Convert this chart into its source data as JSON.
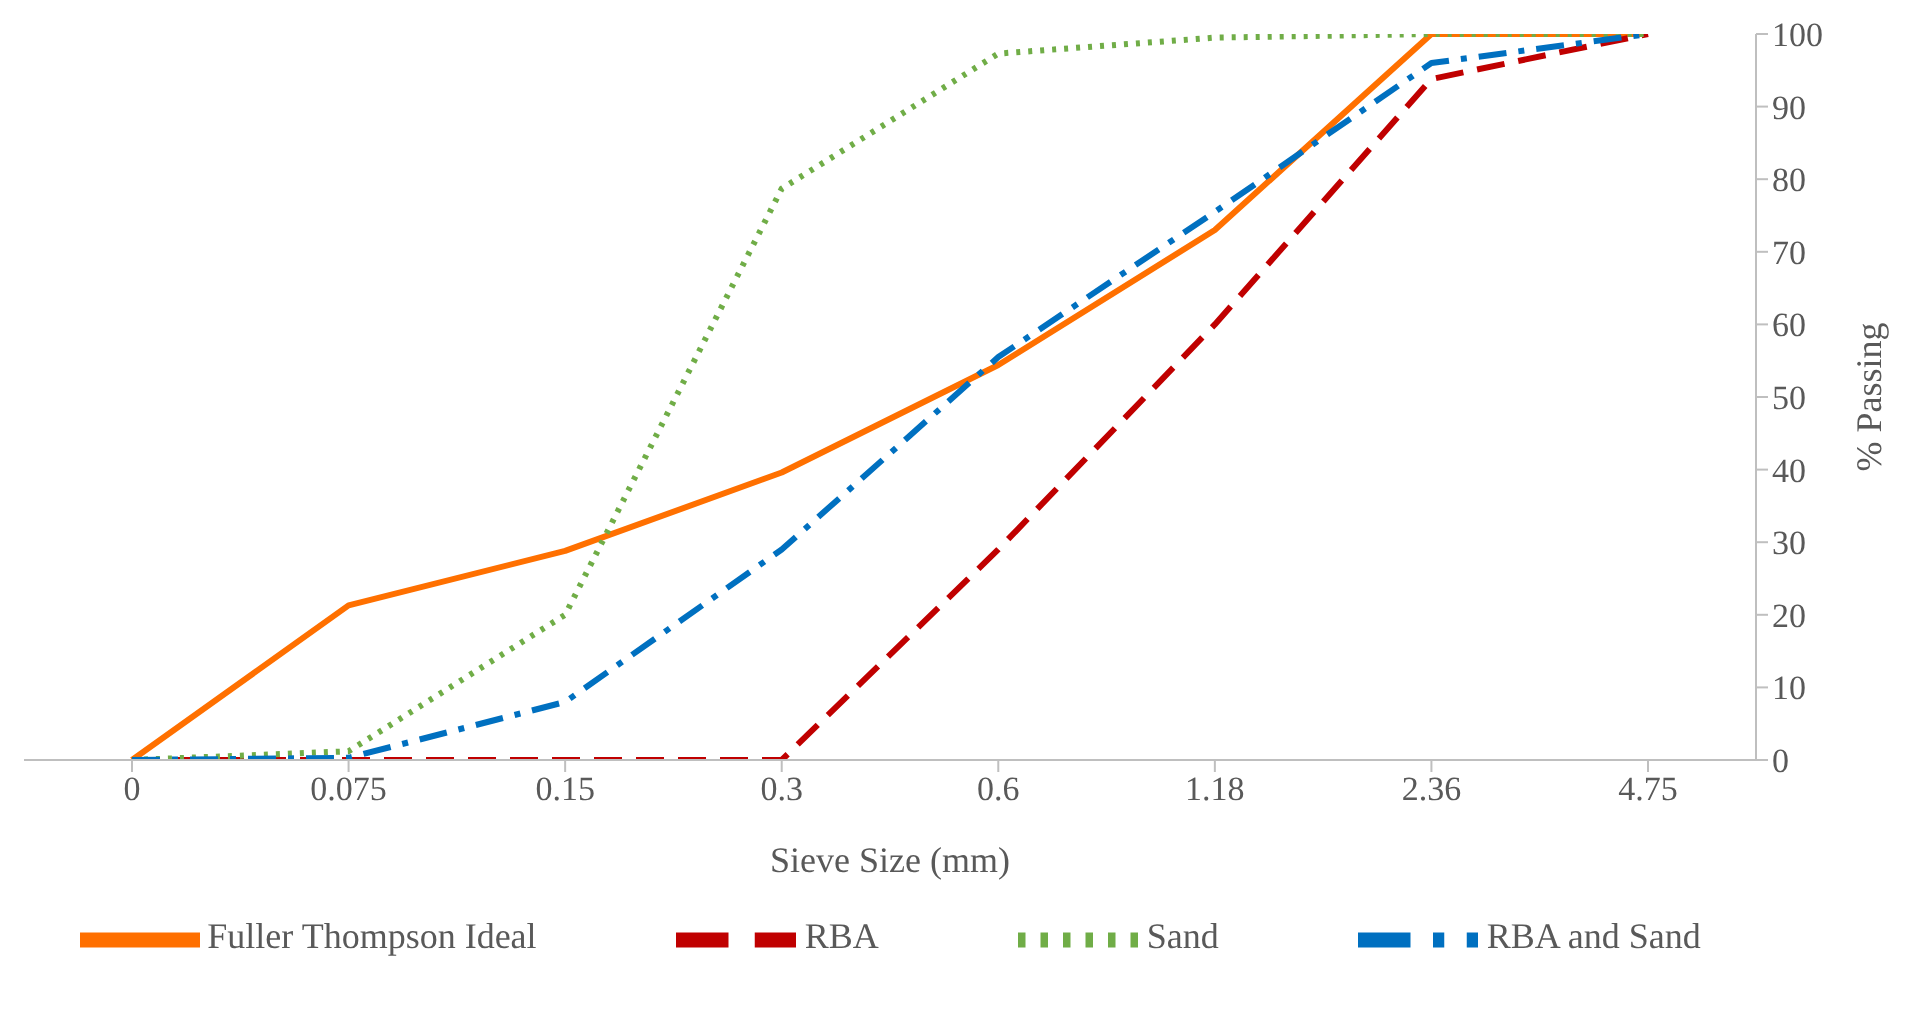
{
  "chart_data": {
    "type": "line",
    "xlabel": "Sieve Size (mm)",
    "ylabel": "% Passing",
    "categories": [
      "0",
      "0.075",
      "0.15",
      "0.3",
      "0.6",
      "1.18",
      "2.36",
      "4.75"
    ],
    "series": [
      {
        "name": "Fuller Thompson Ideal",
        "color": "#ff7000",
        "line_style": "solid",
        "values": [
          0,
          21.3,
          28.8,
          39.6,
          54.4,
          73,
          100,
          100
        ]
      },
      {
        "name": "RBA",
        "color": "#c00000",
        "line_style": "dashed",
        "values": [
          0,
          0,
          0,
          0,
          29,
          60,
          93.8,
          100
        ]
      },
      {
        "name": "Sand",
        "color": "#70ad47",
        "line_style": "dotted",
        "values": [
          0,
          1.2,
          20,
          78.7,
          97.3,
          99.5,
          100,
          100
        ]
      },
      {
        "name": "RBA and Sand",
        "color": "#0070c0",
        "line_style": "dashdot",
        "values": [
          0,
          0.3,
          8,
          29,
          55.5,
          75.5,
          96,
          100
        ]
      }
    ],
    "ylim": [
      0,
      100
    ],
    "yticks": [
      0,
      10,
      20,
      30,
      40,
      50,
      60,
      70,
      80,
      90,
      100
    ],
    "grid": false,
    "legend": "bottom",
    "marker": "none"
  }
}
